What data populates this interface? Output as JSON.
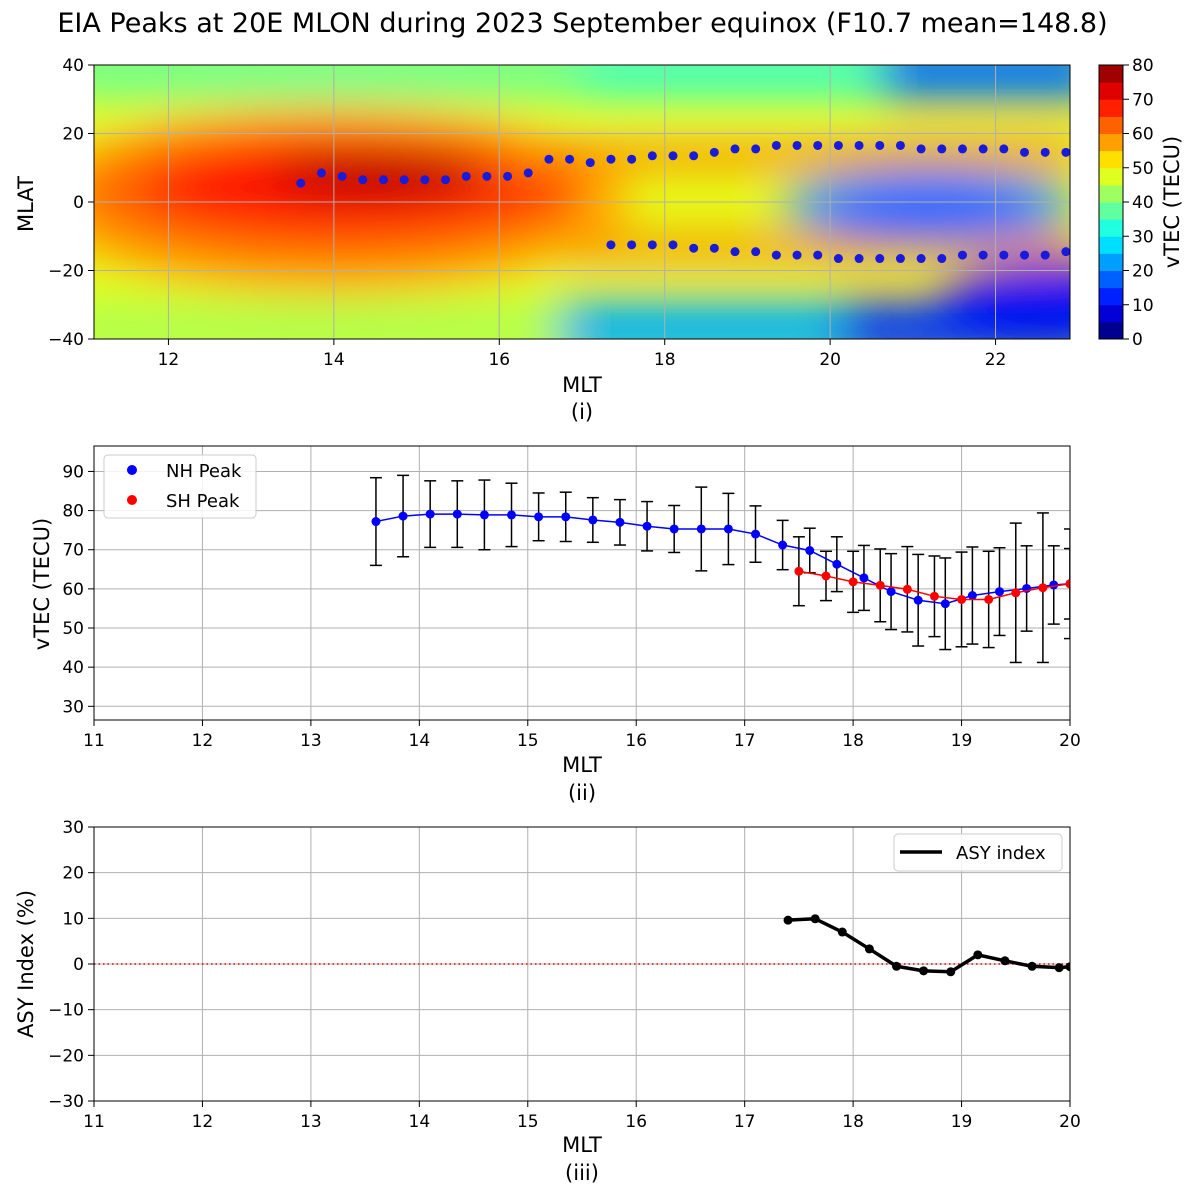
{
  "title": "EIA Peaks at 20E MLON during 2023 September equinox (F10.7 mean=148.8)",
  "chart_data": [
    {
      "type": "heatmap",
      "panel_label": "(i)",
      "xlabel": "MLT",
      "ylabel": "MLAT",
      "xlim": [
        11.1,
        22.9
      ],
      "ylim": [
        -40,
        40
      ],
      "xticks": [
        "12",
        "14",
        "16",
        "18",
        "20",
        "22"
      ],
      "yticks": [
        "−40",
        "−20",
        "0",
        "20",
        "40"
      ],
      "grid": true,
      "colorbar": {
        "label": "vTEC (TECU)",
        "ticks": [
          "0",
          "10",
          "20",
          "30",
          "40",
          "50",
          "60",
          "70",
          "80"
        ],
        "range": [
          0,
          80
        ],
        "levels": [
          "#00008f",
          "#0000d6",
          "#0020ff",
          "#0060ff",
          "#009fff",
          "#00dfff",
          "#20ffdf",
          "#60ff9f",
          "#9fff60",
          "#dfff20",
          "#ffdf00",
          "#ff9f00",
          "#ff6000",
          "#ff2000",
          "#df0000",
          "#9f0000"
        ]
      },
      "series": [
        {
          "name": "NH peak",
          "color": "#1a1adb",
          "x": [
            13.6,
            13.85,
            14.1,
            14.35,
            14.6,
            14.85,
            15.1,
            15.35,
            15.6,
            15.85,
            16.1,
            16.35,
            16.6,
            16.85,
            17.1,
            17.35,
            17.6,
            17.85,
            18.1,
            18.35,
            18.6,
            18.85,
            19.1,
            19.35,
            19.6,
            19.85,
            20.1,
            20.35,
            20.6,
            20.85,
            21.1,
            21.35,
            21.6,
            21.85,
            22.1,
            22.35,
            22.6,
            22.85
          ],
          "y": [
            5.5,
            8.5,
            7.5,
            6.5,
            6.5,
            6.5,
            6.5,
            6.5,
            7.5,
            7.5,
            7.5,
            8.5,
            12.5,
            12.5,
            11.5,
            12.5,
            12.5,
            13.5,
            13.5,
            13.5,
            14.5,
            15.5,
            15.5,
            16.5,
            16.5,
            16.5,
            16.5,
            16.5,
            16.5,
            16.5,
            15.5,
            15.5,
            15.5,
            15.5,
            15.5,
            14.5,
            14.5,
            14.5
          ]
        },
        {
          "name": "SH peak",
          "color": "#1a1adb",
          "x": [
            17.35,
            17.6,
            17.85,
            18.1,
            18.35,
            18.6,
            18.85,
            19.1,
            19.35,
            19.6,
            19.85,
            20.1,
            20.35,
            20.6,
            20.85,
            21.1,
            21.35,
            21.6,
            21.85,
            22.1,
            22.35,
            22.6,
            22.85
          ],
          "y": [
            -12.5,
            -12.5,
            -12.5,
            -12.5,
            -13.5,
            -13.5,
            -14.5,
            -14.5,
            -15.5,
            -15.5,
            -15.5,
            -16.5,
            -16.5,
            -16.5,
            -16.5,
            -16.5,
            -16.5,
            -15.5,
            -15.5,
            -15.5,
            -15.5,
            -15.5,
            -14.5
          ]
        }
      ]
    },
    {
      "type": "line",
      "panel_label": "(ii)",
      "xlabel": "MLT",
      "ylabel": "vTEC (TECU)",
      "xlim": [
        11,
        20
      ],
      "ylim": [
        26.5,
        96.5
      ],
      "xticks": [
        "11",
        "12",
        "13",
        "14",
        "15",
        "16",
        "17",
        "18",
        "19",
        "20"
      ],
      "yticks": [
        "30",
        "40",
        "50",
        "60",
        "70",
        "80",
        "90"
      ],
      "grid": true,
      "legend_position": "top-left",
      "series": [
        {
          "name": "NH Peak",
          "color": "#0000ff",
          "x": [
            13.6,
            13.85,
            14.1,
            14.35,
            14.6,
            14.85,
            15.1,
            15.35,
            15.6,
            15.85,
            16.1,
            16.35,
            16.6,
            16.85,
            17.1,
            17.35,
            17.6,
            17.85,
            18.1,
            18.35,
            18.6,
            18.85,
            19.1,
            19.35,
            19.6,
            19.85,
            20.0
          ],
          "y": [
            77.2,
            78.6,
            79.1,
            79.1,
            78.9,
            78.9,
            78.4,
            78.4,
            77.6,
            77.0,
            76.0,
            75.3,
            75.3,
            75.3,
            74.0,
            71.2,
            69.8,
            66.3,
            62.8,
            59.3,
            57.1,
            56.2,
            58.3,
            59.3,
            60.1,
            61.0,
            61.3
          ],
          "err": [
            11.2,
            10.4,
            8.5,
            8.5,
            8.9,
            8.1,
            6.1,
            6.3,
            5.7,
            5.8,
            6.3,
            6.0,
            10.7,
            9.1,
            7.2,
            6.3,
            5.7,
            7.0,
            8.3,
            9.7,
            11.7,
            11.7,
            12.4,
            11.2,
            10.9,
            10.0,
            9.0
          ]
        },
        {
          "name": "SH Peak",
          "color": "#ff0000",
          "x": [
            17.5,
            17.75,
            18.0,
            18.25,
            18.5,
            18.75,
            19.0,
            19.25,
            19.5,
            19.75,
            20.0
          ],
          "y": [
            64.5,
            63.3,
            61.8,
            60.9,
            59.9,
            58.1,
            57.3,
            57.3,
            59.0,
            60.3,
            61.3
          ],
          "err": [
            8.8,
            6.3,
            7.8,
            9.3,
            10.9,
            10.3,
            12.1,
            12.3,
            17.8,
            19.1,
            14.0
          ]
        }
      ]
    },
    {
      "type": "line",
      "panel_label": "(iii)",
      "xlabel": "MLT",
      "ylabel": "ASY Index (%)",
      "xlim": [
        11,
        20
      ],
      "ylim": [
        -30,
        30
      ],
      "xticks": [
        "11",
        "12",
        "13",
        "14",
        "15",
        "16",
        "17",
        "18",
        "19",
        "20"
      ],
      "yticks": [
        "−30",
        "−20",
        "−10",
        "0",
        "10",
        "20",
        "30"
      ],
      "grid": true,
      "legend_position": "top-right",
      "reference_line": {
        "y": 0,
        "color": "#e00000",
        "style": "dotted"
      },
      "series": [
        {
          "name": "ASY index",
          "color": "#000000",
          "x": [
            17.4,
            17.65,
            17.9,
            18.15,
            18.4,
            18.65,
            18.9,
            19.15,
            19.4,
            19.65,
            19.9,
            20.0
          ],
          "y": [
            9.6,
            9.9,
            7.0,
            3.3,
            -0.5,
            -1.5,
            -1.7,
            2.0,
            0.7,
            -0.5,
            -0.8,
            -0.6
          ]
        }
      ]
    }
  ]
}
